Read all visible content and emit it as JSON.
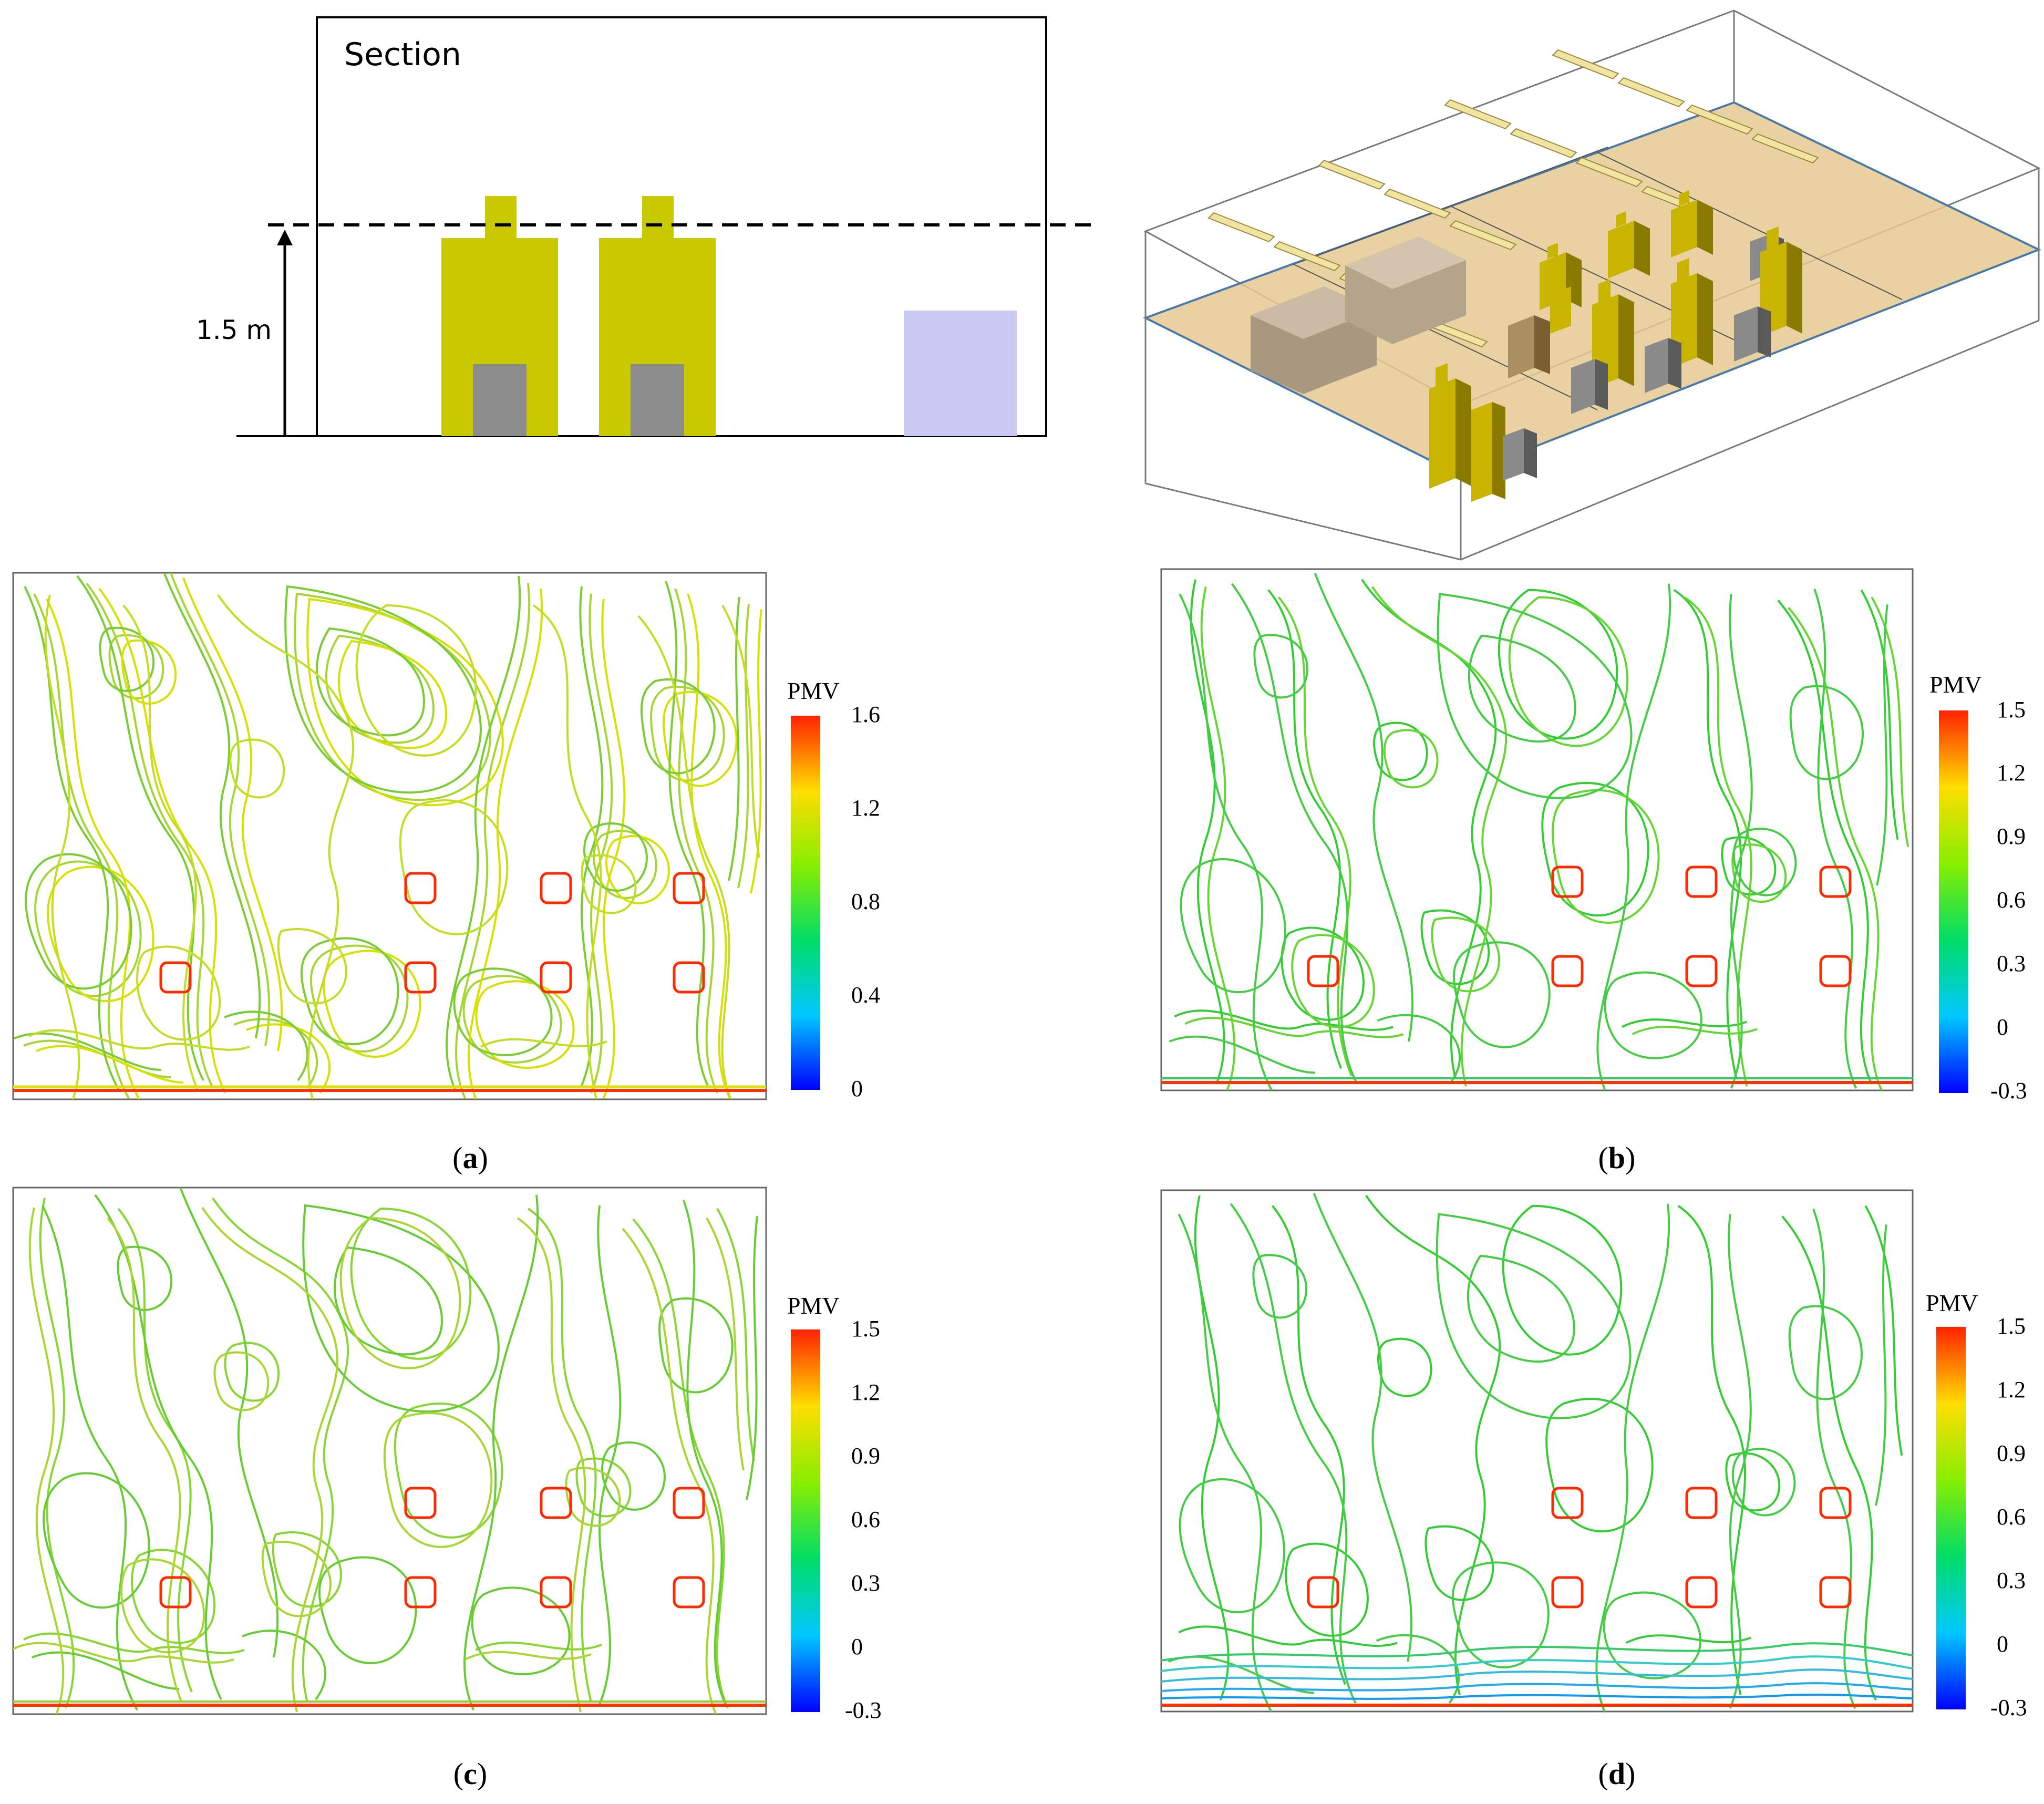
{
  "section": {
    "title": "Section",
    "height_label": "1.5 m"
  },
  "panels": [
    {
      "id": "a",
      "caption_letter": "a",
      "colorbar": {
        "title": "PMV",
        "ticks": [
          "1.6",
          "1.2",
          "0.8",
          "0.4",
          "0"
        ]
      },
      "floor_band": false
    },
    {
      "id": "b",
      "caption_letter": "b",
      "colorbar": {
        "title": "PMV",
        "ticks": [
          "1.5",
          "1.2",
          "0.9",
          "0.6",
          "0.3",
          "0",
          "-0.3"
        ]
      },
      "floor_band": false
    },
    {
      "id": "c",
      "caption_letter": "c",
      "colorbar": {
        "title": "PMV",
        "ticks": [
          "1.5",
          "1.2",
          "0.9",
          "0.6",
          "0.3",
          "0",
          "-0.3"
        ]
      },
      "floor_band": false
    },
    {
      "id": "d",
      "caption_letter": "d",
      "colorbar": {
        "title": "PMV",
        "ticks": [
          "1.5",
          "1.2",
          "0.9",
          "0.6",
          "0.3",
          "0",
          "-0.3"
        ]
      },
      "floor_band": true
    }
  ],
  "colors": {
    "occupant": "#c9c900",
    "occupant_seat": "#8c8c8c",
    "cabinet": "#c8c8f0",
    "floor_plane": "#e6c990",
    "heat_source": "#ff2a00",
    "contour_green": "#33cc33",
    "contour_yellowgreen": "#a6d633",
    "contour_yellow": "#e0e000",
    "contour_cyan": "#33cccc"
  }
}
